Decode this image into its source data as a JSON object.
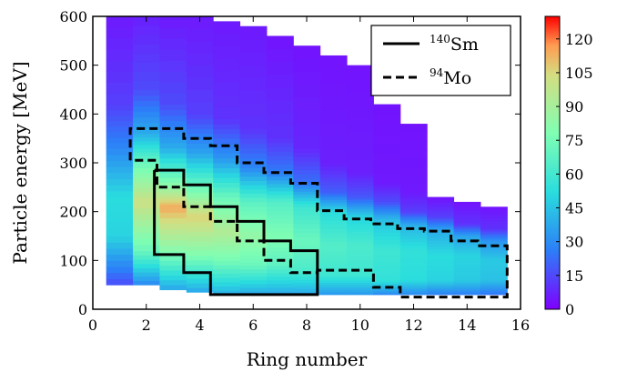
{
  "chart_data": {
    "type": "heatmap",
    "title": "",
    "xlabel": "Ring number",
    "ylabel": "Particle energy [MeV]",
    "xlim": [
      0,
      16
    ],
    "ylim": [
      0,
      600
    ],
    "x_ticks": [
      0,
      2,
      4,
      6,
      8,
      10,
      12,
      14,
      16
    ],
    "y_ticks": [
      0,
      100,
      200,
      300,
      400,
      500,
      600
    ],
    "grid": false,
    "colormap": "rainbow",
    "colorbar": {
      "range": [
        0,
        130
      ],
      "ticks": [
        0,
        15,
        30,
        45,
        60,
        75,
        90,
        105,
        120
      ]
    },
    "heatmap_columns": [
      {
        "ring": 1,
        "bands": [
          [
            50,
            0.12
          ],
          [
            150,
            0.38
          ],
          [
            230,
            0.4
          ],
          [
            330,
            0.22
          ],
          [
            420,
            0.1
          ],
          [
            600,
            0.04
          ]
        ]
      },
      {
        "ring": 2,
        "bands": [
          [
            50,
            0.22
          ],
          [
            120,
            0.55
          ],
          [
            220,
            0.78
          ],
          [
            300,
            0.55
          ],
          [
            360,
            0.3
          ],
          [
            450,
            0.12
          ],
          [
            600,
            0.05
          ]
        ]
      },
      {
        "ring": 3,
        "bands": [
          [
            40,
            0.28
          ],
          [
            120,
            0.62
          ],
          [
            210,
            0.88
          ],
          [
            250,
            0.65
          ],
          [
            330,
            0.3
          ],
          [
            420,
            0.12
          ],
          [
            600,
            0.04
          ]
        ]
      },
      {
        "ring": 4,
        "bands": [
          [
            35,
            0.28
          ],
          [
            110,
            0.6
          ],
          [
            190,
            0.82
          ],
          [
            240,
            0.6
          ],
          [
            320,
            0.28
          ],
          [
            400,
            0.1
          ],
          [
            600,
            0.04
          ]
        ]
      },
      {
        "ring": 5,
        "bands": [
          [
            30,
            0.3
          ],
          [
            100,
            0.58
          ],
          [
            160,
            0.72
          ],
          [
            230,
            0.55
          ],
          [
            310,
            0.25
          ],
          [
            390,
            0.08
          ],
          [
            590,
            0.04
          ]
        ]
      },
      {
        "ring": 6,
        "bands": [
          [
            30,
            0.28
          ],
          [
            90,
            0.55
          ],
          [
            150,
            0.65
          ],
          [
            220,
            0.52
          ],
          [
            290,
            0.22
          ],
          [
            370,
            0.08
          ],
          [
            580,
            0.04
          ]
        ]
      },
      {
        "ring": 7,
        "bands": [
          [
            30,
            0.28
          ],
          [
            90,
            0.52
          ],
          [
            150,
            0.6
          ],
          [
            220,
            0.5
          ],
          [
            280,
            0.2
          ],
          [
            350,
            0.08
          ],
          [
            560,
            0.03
          ]
        ]
      },
      {
        "ring": 8,
        "bands": [
          [
            30,
            0.28
          ],
          [
            80,
            0.48
          ],
          [
            140,
            0.55
          ],
          [
            210,
            0.45
          ],
          [
            260,
            0.18
          ],
          [
            330,
            0.06
          ],
          [
            540,
            0.03
          ]
        ]
      },
      {
        "ring": 9,
        "bands": [
          [
            30,
            0.25
          ],
          [
            70,
            0.45
          ],
          [
            130,
            0.5
          ],
          [
            200,
            0.4
          ],
          [
            240,
            0.15
          ],
          [
            300,
            0.05
          ],
          [
            520,
            0.03
          ]
        ]
      },
      {
        "ring": 10,
        "bands": [
          [
            30,
            0.25
          ],
          [
            70,
            0.45
          ],
          [
            130,
            0.48
          ],
          [
            190,
            0.38
          ],
          [
            230,
            0.14
          ],
          [
            280,
            0.05
          ],
          [
            500,
            0.03
          ]
        ]
      },
      {
        "ring": 11,
        "bands": [
          [
            30,
            0.22
          ],
          [
            60,
            0.42
          ],
          [
            120,
            0.45
          ],
          [
            180,
            0.35
          ],
          [
            220,
            0.12
          ],
          [
            260,
            0.04
          ],
          [
            420,
            0.03
          ]
        ]
      },
      {
        "ring": 12,
        "bands": [
          [
            30,
            0.22
          ],
          [
            60,
            0.4
          ],
          [
            120,
            0.42
          ],
          [
            170,
            0.32
          ],
          [
            200,
            0.1
          ],
          [
            240,
            0.04
          ],
          [
            380,
            0.03
          ]
        ]
      },
      {
        "ring": 13,
        "bands": [
          [
            30,
            0.2
          ],
          [
            60,
            0.38
          ],
          [
            110,
            0.4
          ],
          [
            160,
            0.3
          ],
          [
            190,
            0.1
          ],
          [
            230,
            0.03
          ]
        ]
      },
      {
        "ring": 14,
        "bands": [
          [
            30,
            0.2
          ],
          [
            60,
            0.36
          ],
          [
            110,
            0.38
          ],
          [
            150,
            0.28
          ],
          [
            175,
            0.08
          ],
          [
            220,
            0.03
          ]
        ]
      },
      {
        "ring": 15,
        "bands": [
          [
            30,
            0.18
          ],
          [
            60,
            0.34
          ],
          [
            100,
            0.36
          ],
          [
            140,
            0.25
          ],
          [
            165,
            0.08
          ],
          [
            210,
            0.03
          ]
        ]
      }
    ],
    "series": [
      {
        "style": "solid",
        "points": [
          [
            2.3,
            285
          ],
          [
            3.4,
            285
          ],
          [
            3.4,
            255
          ],
          [
            4.4,
            255
          ],
          [
            4.4,
            210
          ],
          [
            5.4,
            210
          ],
          [
            5.4,
            180
          ],
          [
            6.4,
            180
          ],
          [
            6.4,
            140
          ],
          [
            7.4,
            140
          ],
          [
            7.4,
            120
          ],
          [
            8.4,
            120
          ],
          [
            8.4,
            30
          ],
          [
            4.4,
            30
          ],
          [
            4.4,
            75
          ],
          [
            3.4,
            75
          ],
          [
            3.4,
            112
          ],
          [
            2.3,
            112
          ],
          [
            2.3,
            285
          ]
        ]
      },
      {
        "style": "dashed",
        "points": [
          [
            1.4,
            305
          ],
          [
            1.4,
            370
          ],
          [
            3.4,
            370
          ],
          [
            3.4,
            350
          ],
          [
            4.4,
            350
          ],
          [
            4.4,
            335
          ],
          [
            5.4,
            335
          ],
          [
            5.4,
            300
          ],
          [
            6.4,
            300
          ],
          [
            6.4,
            280
          ],
          [
            7.4,
            280
          ],
          [
            7.4,
            258
          ],
          [
            8.4,
            258
          ],
          [
            8.4,
            202
          ],
          [
            9.4,
            202
          ],
          [
            9.4,
            185
          ],
          [
            10.4,
            185
          ],
          [
            10.4,
            175
          ],
          [
            11.4,
            175
          ],
          [
            11.4,
            165
          ],
          [
            12.4,
            165
          ],
          [
            12.4,
            160
          ],
          [
            13.4,
            160
          ],
          [
            13.4,
            140
          ],
          [
            14.4,
            140
          ],
          [
            14.4,
            130
          ],
          [
            15.5,
            130
          ],
          [
            15.5,
            25
          ],
          [
            11.5,
            25
          ],
          [
            11.5,
            45
          ],
          [
            10.5,
            45
          ],
          [
            10.5,
            80
          ],
          [
            8.4,
            80
          ],
          [
            8.4,
            75
          ],
          [
            7.4,
            75
          ],
          [
            7.4,
            100
          ],
          [
            6.4,
            100
          ],
          [
            6.4,
            140
          ],
          [
            5.4,
            140
          ],
          [
            5.4,
            180
          ],
          [
            4.4,
            180
          ],
          [
            4.4,
            210
          ],
          [
            3.4,
            210
          ],
          [
            3.4,
            250
          ],
          [
            2.4,
            250
          ],
          [
            2.4,
            305
          ],
          [
            1.4,
            305
          ]
        ]
      }
    ]
  },
  "legend": {
    "position": "top-right",
    "entries": [
      {
        "key": "sm",
        "mass": "140",
        "element": "Sm",
        "style": "solid"
      },
      {
        "key": "mo",
        "mass": "94",
        "element": "Mo",
        "style": "dashed"
      }
    ]
  }
}
